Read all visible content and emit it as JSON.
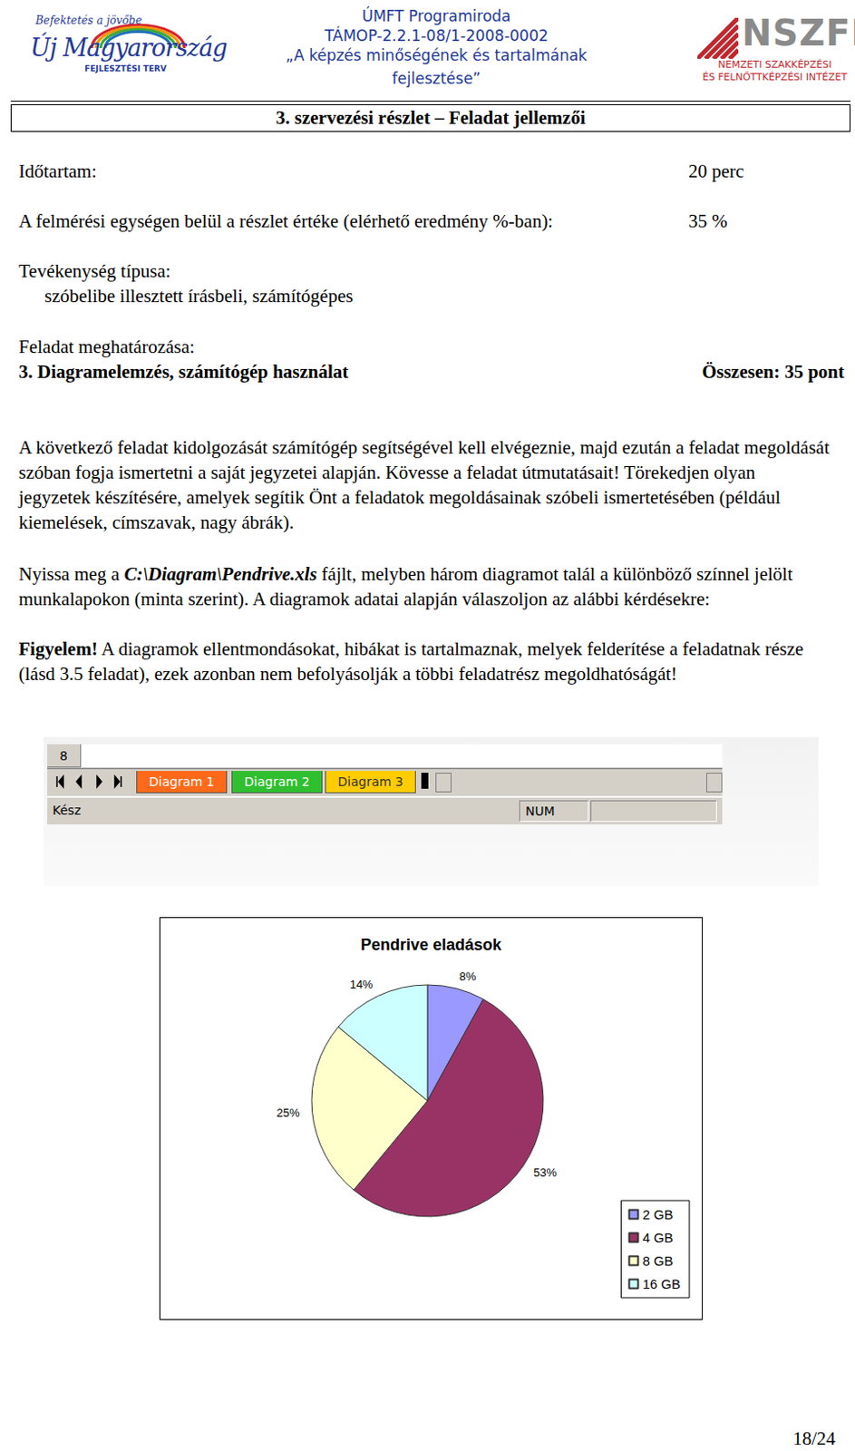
{
  "header": {
    "left_logo": {
      "slogan": "Befektetés a jövőbe",
      "name": "Új Magyarország",
      "subtitle": "FEJLESZTÉSI TERV"
    },
    "center": [
      "ÚMFT Programiroda",
      "TÁMOP-2.2.1-08/1-2008-0002",
      "„A képzés minőségének és tartalmának",
      "fejlesztése”"
    ],
    "right_logo": {
      "name": "NSZFI",
      "subtitle": [
        "NEMZETI SZAKKÉPZÉSI",
        "ÉS FELNŐTTKÉPZÉSI INTÉZET"
      ]
    }
  },
  "section_title": "3. szervezési részlet – Feladat jellemzői",
  "fields": [
    {
      "label": "Időtartam:",
      "value": "20 perc"
    },
    {
      "label": "A felmérési egységen belül a részlet értéke (elérhető eredmény %-ban):",
      "value": "35 %"
    }
  ],
  "activity": {
    "label": "Tevékenység típusa:",
    "value": "szóbelibe illesztett írásbeli, számítógépes"
  },
  "task": {
    "label": "Feladat meghatározása:",
    "title": "3. Diagramelemzés, számítógép használat",
    "points": "Összesen: 35 pont"
  },
  "paragraphs": [
    [
      {
        "text": "A következő feladat kidolgozását számítógép segítségével kell elvégeznie, majd ezután a feladat megoldását szóban fogja ismertetni a saját jegyzetei alapján. Kövesse a feladat útmutatásait! Törekedjen olyan jegyzetek készítésére, amelyek segítik Önt a feladatok megoldásainak szóbeli ismertetésében (például kiemelések, címszavak, nagy ábrák)."
      }
    ],
    [
      {
        "text": "Nyissa meg a "
      },
      {
        "text": "C:\\Diagram\\Pendrive.xls",
        "style": "bold-italic"
      },
      {
        "text": " fájlt, melyben három diagramot talál a különböző színnel jelölt munkalapokon (minta szerint). A diagramok adatai alapján válaszoljon az alábbi kérdésekre:"
      }
    ],
    [
      {
        "text": "Figyelem!",
        "style": "bold"
      },
      {
        "text": " A diagramok ellentmondásokat, hibákat is tartalmaznak, melyek felderítése a feladatnak része (lásd 3.5 feladat), ezek azonban nem befolyásolják a többi feladatrész megoldhatóságát!"
      }
    ]
  ],
  "screenshot": {
    "row": "8",
    "tabs": [
      "Diagram 1",
      "Diagram 2",
      "Diagram 3"
    ],
    "status": "Kész",
    "indicator": "NUM"
  },
  "chart_data": {
    "type": "pie",
    "title": "Pendrive eladások",
    "categories": [
      "2 GB",
      "4 GB",
      "8 GB",
      "16 GB"
    ],
    "values": [
      8,
      53,
      25,
      14
    ],
    "value_labels": [
      "8%",
      "53%",
      "25%",
      "14%"
    ],
    "colors": [
      "#9999ff",
      "#993366",
      "#ffffcc",
      "#ccffff"
    ],
    "data_labels": true,
    "legend": "right"
  },
  "page_number": "18/24"
}
